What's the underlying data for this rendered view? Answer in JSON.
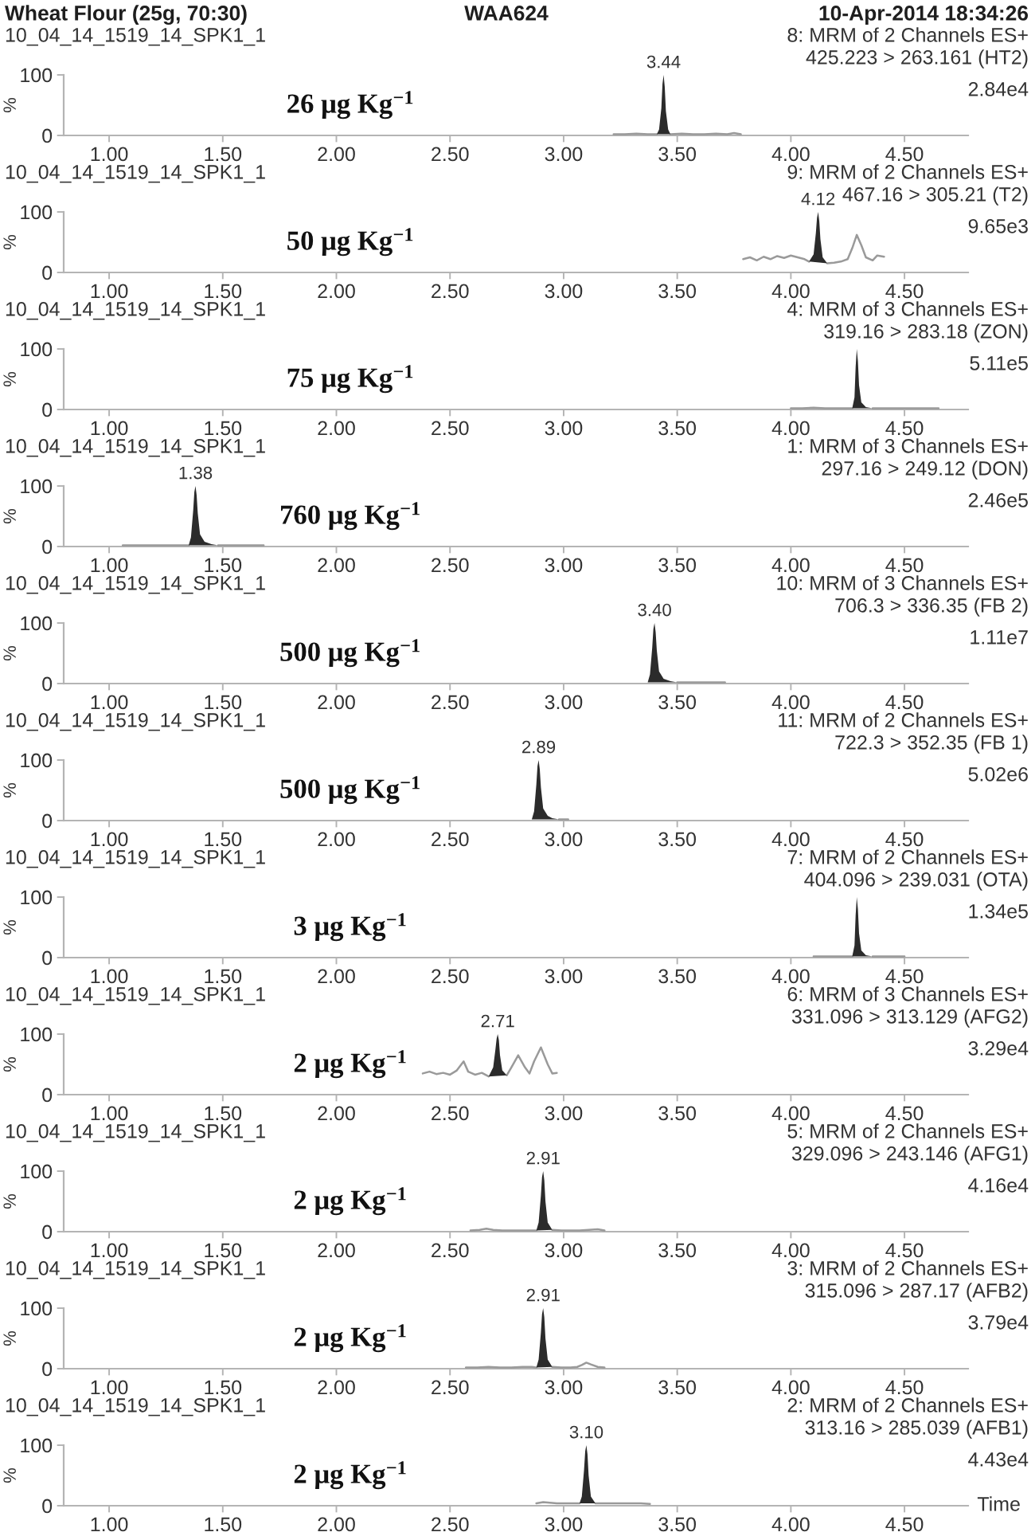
{
  "chart_data": [
    {
      "type": "other",
      "title": "Wheat Flour (25g, 70:30)",
      "annotations": [
        "WAA624",
        "10-Apr-2014 18:34:26"
      ]
    },
    {
      "type": "line",
      "title": "10_04_14_1519_14_SPK1_1",
      "annotations": [
        "8: MRM of 2 Channels ES+",
        "425.223 > 263.161 (HT2)",
        "2.84e4",
        "26 μg Kg$^{−1}$",
        {
          "text": "3.44",
          "x": 3.44,
          "y": 100
        }
      ],
      "xlim": [
        0.8,
        4.78
      ],
      "xticks": [
        {
          "value": 1,
          "label": "1.00"
        },
        {
          "value": 1.5,
          "label": "1.50"
        },
        {
          "value": 2,
          "label": "2.00"
        },
        {
          "value": 2.5,
          "label": "2.50"
        },
        {
          "value": 3,
          "label": "3.00"
        },
        {
          "value": 3.5,
          "label": "3.50"
        },
        {
          "value": 4,
          "label": "4.00"
        },
        {
          "value": 4.5,
          "label": "4.50"
        }
      ],
      "ylim": [
        0,
        100
      ],
      "yticks": [
        0,
        100
      ],
      "ylabel": "%",
      "series": [
        {
          "type": "line",
          "color": "#9a9a9a",
          "x": [
            3.22,
            3.27,
            3.32,
            3.37,
            3.41,
            3.42,
            3.47,
            3.52,
            3.57,
            3.62,
            3.67,
            3.72,
            3.75,
            3.78
          ],
          "values": [
            2,
            2,
            3,
            2,
            2,
            null,
            2,
            3,
            2,
            2,
            3,
            2,
            4,
            2
          ]
        },
        {
          "type": "area",
          "color": "#2b2b2b",
          "x": [
            3.41,
            3.42,
            3.43,
            3.435,
            3.44,
            3.445,
            3.45,
            3.46,
            3.47
          ],
          "values": [
            2,
            10,
            45,
            85,
            100,
            80,
            40,
            10,
            2
          ]
        }
      ]
    },
    {
      "type": "line",
      "title": "10_04_14_1519_14_SPK1_1",
      "annotations": [
        "9: MRM of 2 Channels ES+",
        "467.16 > 305.21 (T2)",
        "9.65e3",
        "50 μg Kg$^{−1}$",
        {
          "text": "4.12",
          "x": 4.12,
          "y": 100
        }
      ],
      "xlim": [
        0.8,
        4.78
      ],
      "xticks": [
        {
          "value": 1,
          "label": "1.00"
        },
        {
          "value": 1.5,
          "label": "1.50"
        },
        {
          "value": 2,
          "label": "2.00"
        },
        {
          "value": 2.5,
          "label": "2.50"
        },
        {
          "value": 3,
          "label": "3.00"
        },
        {
          "value": 3.5,
          "label": "3.50"
        },
        {
          "value": 4,
          "label": "4.00"
        },
        {
          "value": 4.5,
          "label": "4.50"
        }
      ],
      "ylim": [
        0,
        100
      ],
      "yticks": [
        0,
        100
      ],
      "ylabel": "%",
      "series": [
        {
          "type": "line",
          "color": "#9a9a9a",
          "x": [
            3.79,
            3.82,
            3.85,
            3.88,
            3.91,
            3.94,
            3.97,
            4.0,
            4.03,
            4.06,
            4.08,
            4.1,
            4.16,
            4.19,
            4.22,
            4.25,
            4.27,
            4.29,
            4.31,
            4.33,
            4.36,
            4.38,
            4.41
          ],
          "values": [
            22,
            25,
            20,
            26,
            22,
            27,
            24,
            28,
            25,
            22,
            18,
            null,
            15,
            16,
            18,
            22,
            40,
            62,
            45,
            25,
            20,
            28,
            26
          ]
        },
        {
          "type": "area",
          "color": "#2b2b2b",
          "x": [
            4.08,
            4.1,
            4.11,
            4.115,
            4.12,
            4.125,
            4.13,
            4.14,
            4.16
          ],
          "values": [
            18,
            30,
            65,
            90,
            100,
            85,
            55,
            25,
            15
          ]
        }
      ]
    },
    {
      "type": "line",
      "title": "10_04_14_1519_14_SPK1_1",
      "annotations": [
        "4: MRM of 3 Channels ES+",
        "319.16 > 283.18 (ZON)",
        "5.11e5",
        "75 μg Kg$^{−1}$"
      ],
      "xlim": [
        0.8,
        4.78
      ],
      "xticks": [
        {
          "value": 1,
          "label": "1.00"
        },
        {
          "value": 1.5,
          "label": "1.50"
        },
        {
          "value": 2,
          "label": "2.00"
        },
        {
          "value": 2.5,
          "label": "2.50"
        },
        {
          "value": 3,
          "label": "3.00"
        },
        {
          "value": 3.5,
          "label": "3.50"
        },
        {
          "value": 4,
          "label": "4.00"
        },
        {
          "value": 4.5,
          "label": "4.50"
        }
      ],
      "ylim": [
        0,
        100
      ],
      "yticks": [
        0,
        100
      ],
      "ylabel": "%",
      "series": [
        {
          "type": "line",
          "color": "#9a9a9a",
          "x": [
            4.0,
            4.05,
            4.1,
            4.15,
            4.2,
            4.25,
            4.27,
            4.28,
            4.36,
            4.4,
            4.45,
            4.5,
            4.55,
            4.6,
            4.65
          ],
          "values": [
            2,
            2,
            3,
            2,
            2,
            2,
            2,
            null,
            2,
            2,
            2,
            2,
            2,
            2,
            2
          ]
        },
        {
          "type": "area",
          "color": "#2b2b2b",
          "x": [
            4.27,
            4.28,
            4.285,
            4.29,
            4.295,
            4.3,
            4.31,
            4.33,
            4.36
          ],
          "values": [
            2,
            20,
            70,
            100,
            80,
            40,
            12,
            4,
            2
          ]
        }
      ]
    },
    {
      "type": "line",
      "title": "10_04_14_1519_14_SPK1_1",
      "annotations": [
        "1: MRM of 3 Channels ES+",
        "297.16 > 249.12 (DON)",
        "2.46e5",
        "760 μg Kg$^{−1}$",
        {
          "text": "1.38",
          "x": 1.38,
          "y": 100
        }
      ],
      "xlim": [
        0.8,
        4.78
      ],
      "xticks": [
        {
          "value": 1,
          "label": "1.00"
        },
        {
          "value": 1.5,
          "label": "1.50"
        },
        {
          "value": 2,
          "label": "2.00"
        },
        {
          "value": 2.5,
          "label": "2.50"
        },
        {
          "value": 3,
          "label": "3.00"
        },
        {
          "value": 3.5,
          "label": "3.50"
        },
        {
          "value": 4,
          "label": "4.00"
        },
        {
          "value": 4.5,
          "label": "4.50"
        }
      ],
      "ylim": [
        0,
        100
      ],
      "yticks": [
        0,
        100
      ],
      "ylabel": "%",
      "series": [
        {
          "type": "line",
          "color": "#9a9a9a",
          "x": [
            1.06,
            1.1,
            1.15,
            1.2,
            1.25,
            1.3,
            1.35,
            1.36,
            1.48,
            1.52,
            1.56,
            1.6,
            1.64,
            1.68
          ],
          "values": [
            2,
            2,
            2,
            2,
            2,
            2,
            2,
            null,
            2,
            2,
            2,
            2,
            2,
            2
          ]
        },
        {
          "type": "area",
          "color": "#2b2b2b",
          "x": [
            1.35,
            1.36,
            1.37,
            1.375,
            1.38,
            1.385,
            1.39,
            1.4,
            1.42,
            1.45,
            1.48
          ],
          "values": [
            2,
            15,
            60,
            90,
            100,
            85,
            55,
            20,
            8,
            4,
            2
          ]
        }
      ]
    },
    {
      "type": "line",
      "title": "10_04_14_1519_14_SPK1_1",
      "annotations": [
        "10: MRM of 3 Channels ES+",
        "706.3 > 336.35 (FB 2)",
        "1.11e7",
        "500 μg Kg$^{−1}$",
        {
          "text": "3.40",
          "x": 3.4,
          "y": 100
        }
      ],
      "xlim": [
        0.8,
        4.78
      ],
      "xticks": [
        {
          "value": 1,
          "label": "1.00"
        },
        {
          "value": 1.5,
          "label": "1.50"
        },
        {
          "value": 2,
          "label": "2.00"
        },
        {
          "value": 2.5,
          "label": "2.50"
        },
        {
          "value": 3,
          "label": "3.00"
        },
        {
          "value": 3.5,
          "label": "3.50"
        },
        {
          "value": 4,
          "label": "4.00"
        },
        {
          "value": 4.5,
          "label": "4.50"
        }
      ],
      "ylim": [
        0,
        100
      ],
      "yticks": [
        0,
        100
      ],
      "ylabel": "%",
      "series": [
        {
          "type": "line",
          "color": "#9a9a9a",
          "x": [
            3.5,
            3.55,
            3.6,
            3.65,
            3.71
          ],
          "values": [
            2,
            2,
            2,
            2,
            2
          ]
        },
        {
          "type": "area",
          "color": "#2b2b2b",
          "x": [
            3.37,
            3.38,
            3.39,
            3.395,
            3.4,
            3.405,
            3.41,
            3.42,
            3.44,
            3.47,
            3.5
          ],
          "values": [
            2,
            15,
            60,
            90,
            100,
            85,
            55,
            20,
            8,
            4,
            2
          ]
        }
      ]
    },
    {
      "type": "line",
      "title": "10_04_14_1519_14_SPK1_1",
      "annotations": [
        "11: MRM of 2 Channels ES+",
        "722.3 > 352.35 (FB 1)",
        "5.02e6",
        "500 μg Kg$^{−1}$",
        {
          "text": "2.89",
          "x": 2.89,
          "y": 100
        }
      ],
      "xlim": [
        0.8,
        4.78
      ],
      "xticks": [
        {
          "value": 1,
          "label": "1.00"
        },
        {
          "value": 1.5,
          "label": "1.50"
        },
        {
          "value": 2,
          "label": "2.00"
        },
        {
          "value": 2.5,
          "label": "2.50"
        },
        {
          "value": 3,
          "label": "3.00"
        },
        {
          "value": 3.5,
          "label": "3.50"
        },
        {
          "value": 4,
          "label": "4.00"
        },
        {
          "value": 4.5,
          "label": "4.50"
        }
      ],
      "ylim": [
        0,
        100
      ],
      "yticks": [
        0,
        100
      ],
      "ylabel": "%",
      "series": [
        {
          "type": "line",
          "color": "#9a9a9a",
          "x": [
            2.98,
            3.02
          ],
          "values": [
            2,
            2
          ]
        },
        {
          "type": "area",
          "color": "#2b2b2b",
          "x": [
            2.86,
            2.87,
            2.88,
            2.885,
            2.89,
            2.895,
            2.9,
            2.91,
            2.93,
            2.95,
            2.98
          ],
          "values": [
            2,
            15,
            60,
            90,
            100,
            85,
            55,
            20,
            8,
            4,
            2
          ]
        }
      ]
    },
    {
      "type": "line",
      "title": "10_04_14_1519_14_SPK1_1",
      "annotations": [
        "7: MRM of 2 Channels ES+",
        "404.096 > 239.031 (OTA)",
        "1.34e5",
        "3 μg Kg$^{−1}$"
      ],
      "xlim": [
        0.8,
        4.78
      ],
      "xticks": [
        {
          "value": 1,
          "label": "1.00"
        },
        {
          "value": 1.5,
          "label": "1.50"
        },
        {
          "value": 2,
          "label": "2.00"
        },
        {
          "value": 2.5,
          "label": "2.50"
        },
        {
          "value": 3,
          "label": "3.00"
        },
        {
          "value": 3.5,
          "label": "3.50"
        },
        {
          "value": 4,
          "label": "4.00"
        },
        {
          "value": 4.5,
          "label": "4.50"
        }
      ],
      "ylim": [
        0,
        100
      ],
      "yticks": [
        0,
        100
      ],
      "ylabel": "%",
      "series": [
        {
          "type": "line",
          "color": "#9a9a9a",
          "x": [
            4.1,
            4.15,
            4.2,
            4.25,
            4.27,
            4.28,
            4.36,
            4.4,
            4.45,
            4.5
          ],
          "values": [
            2,
            2,
            2,
            2,
            2,
            null,
            2,
            2,
            2,
            2
          ]
        },
        {
          "type": "area",
          "color": "#2b2b2b",
          "x": [
            4.27,
            4.28,
            4.285,
            4.29,
            4.295,
            4.3,
            4.31,
            4.33,
            4.36
          ],
          "values": [
            2,
            20,
            70,
            100,
            80,
            40,
            12,
            4,
            2
          ]
        }
      ]
    },
    {
      "type": "line",
      "title": "10_04_14_1519_14_SPK1_1",
      "annotations": [
        "6: MRM of 3 Channels ES+",
        "331.096 > 313.129 (AFG2)",
        "3.29e4",
        "2 μg Kg$^{−1}$",
        {
          "text": "2.71",
          "x": 2.71,
          "y": 100
        }
      ],
      "xlim": [
        0.8,
        4.78
      ],
      "xticks": [
        {
          "value": 1,
          "label": "1.00"
        },
        {
          "value": 1.5,
          "label": "1.50"
        },
        {
          "value": 2,
          "label": "2.00"
        },
        {
          "value": 2.5,
          "label": "2.50"
        },
        {
          "value": 3,
          "label": "3.00"
        },
        {
          "value": 3.5,
          "label": "3.50"
        },
        {
          "value": 4,
          "label": "4.00"
        },
        {
          "value": 4.5,
          "label": "4.50"
        }
      ],
      "ylim": [
        0,
        100
      ],
      "yticks": [
        0,
        100
      ],
      "ylabel": "%",
      "series": [
        {
          "type": "line",
          "color": "#9a9a9a",
          "x": [
            2.38,
            2.41,
            2.44,
            2.47,
            2.5,
            2.53,
            2.56,
            2.58,
            2.61,
            2.64,
            2.67,
            2.68,
            2.75,
            2.77,
            2.8,
            2.83,
            2.85,
            2.87,
            2.9,
            2.93,
            2.95,
            2.97
          ],
          "values": [
            35,
            38,
            34,
            36,
            33,
            40,
            55,
            38,
            33,
            36,
            30,
            null,
            32,
            45,
            65,
            45,
            35,
            55,
            78,
            50,
            35,
            36
          ]
        },
        {
          "type": "area",
          "color": "#2b2b2b",
          "x": [
            2.67,
            2.69,
            2.7,
            2.705,
            2.71,
            2.715,
            2.72,
            2.73,
            2.75
          ],
          "values": [
            30,
            45,
            75,
            92,
            100,
            90,
            65,
            40,
            32
          ]
        }
      ]
    },
    {
      "type": "line",
      "title": "10_04_14_1519_14_SPK1_1",
      "annotations": [
        "5: MRM of 2 Channels ES+",
        "329.096 > 243.146 (AFG1)",
        "4.16e4",
        "2 μg Kg$^{−1}$",
        {
          "text": "2.91",
          "x": 2.91,
          "y": 100
        }
      ],
      "xlim": [
        0.8,
        4.78
      ],
      "xticks": [
        {
          "value": 1,
          "label": "1.00"
        },
        {
          "value": 1.5,
          "label": "1.50"
        },
        {
          "value": 2,
          "label": "2.00"
        },
        {
          "value": 2.5,
          "label": "2.50"
        },
        {
          "value": 3,
          "label": "3.00"
        },
        {
          "value": 3.5,
          "label": "3.50"
        },
        {
          "value": 4,
          "label": "4.00"
        },
        {
          "value": 4.5,
          "label": "4.50"
        }
      ],
      "ylim": [
        0,
        100
      ],
      "yticks": [
        0,
        100
      ],
      "ylabel": "%",
      "series": [
        {
          "type": "line",
          "color": "#9a9a9a",
          "x": [
            2.59,
            2.63,
            2.66,
            2.69,
            2.73,
            2.77,
            2.81,
            2.85,
            2.88,
            2.89,
            2.95,
            2.99,
            3.03,
            3.07,
            3.11,
            3.15,
            3.18
          ],
          "values": [
            2,
            3,
            5,
            3,
            2,
            2,
            2,
            2,
            2,
            null,
            3,
            2,
            2,
            2,
            3,
            4,
            2
          ]
        },
        {
          "type": "area",
          "color": "#2b2b2b",
          "x": [
            2.88,
            2.89,
            2.9,
            2.905,
            2.91,
            2.915,
            2.92,
            2.93,
            2.95
          ],
          "values": [
            2,
            15,
            60,
            90,
            100,
            85,
            50,
            15,
            3
          ]
        }
      ]
    },
    {
      "type": "line",
      "title": "10_04_14_1519_14_SPK1_1",
      "annotations": [
        "3: MRM of 2 Channels ES+",
        "315.096 > 287.17 (AFB2)",
        "3.79e4",
        "2 μg Kg$^{−1}$",
        {
          "text": "2.91",
          "x": 2.91,
          "y": 100
        }
      ],
      "xlim": [
        0.8,
        4.78
      ],
      "xticks": [
        {
          "value": 1,
          "label": "1.00"
        },
        {
          "value": 1.5,
          "label": "1.50"
        },
        {
          "value": 2,
          "label": "2.00"
        },
        {
          "value": 2.5,
          "label": "2.50"
        },
        {
          "value": 3,
          "label": "3.00"
        },
        {
          "value": 3.5,
          "label": "3.50"
        },
        {
          "value": 4,
          "label": "4.00"
        },
        {
          "value": 4.5,
          "label": "4.50"
        }
      ],
      "ylim": [
        0,
        100
      ],
      "yticks": [
        0,
        100
      ],
      "ylabel": "%",
      "series": [
        {
          "type": "line",
          "color": "#9a9a9a",
          "x": [
            2.57,
            2.62,
            2.67,
            2.72,
            2.77,
            2.82,
            2.86,
            2.88,
            2.89,
            2.95,
            2.99,
            3.03,
            3.06,
            3.08,
            3.1,
            3.12,
            3.15,
            3.18
          ],
          "values": [
            2,
            2,
            3,
            2,
            2,
            3,
            3,
            2,
            null,
            3,
            2,
            2,
            3,
            6,
            10,
            7,
            3,
            2
          ]
        },
        {
          "type": "area",
          "color": "#2b2b2b",
          "x": [
            2.88,
            2.89,
            2.9,
            2.905,
            2.91,
            2.915,
            2.92,
            2.93,
            2.95
          ],
          "values": [
            2,
            15,
            60,
            90,
            100,
            85,
            50,
            15,
            3
          ]
        }
      ]
    },
    {
      "type": "line",
      "title": "10_04_14_1519_14_SPK1_1",
      "annotations": [
        "2: MRM of 2 Channels ES+",
        "313.16 > 285.039 (AFB1)",
        "4.43e4",
        "2 μg Kg$^{−1}$",
        {
          "text": "3.10",
          "x": 3.1,
          "y": 100
        }
      ],
      "xlim": [
        0.8,
        4.78
      ],
      "xticks": [
        {
          "value": 1,
          "label": "1.00"
        },
        {
          "value": 1.5,
          "label": "1.50"
        },
        {
          "value": 2,
          "label": "2.00"
        },
        {
          "value": 2.5,
          "label": "2.50"
        },
        {
          "value": 3,
          "label": "3.00"
        },
        {
          "value": 3.5,
          "label": "3.50"
        },
        {
          "value": 4,
          "label": "4.00"
        },
        {
          "value": 4.5,
          "label": "4.50"
        }
      ],
      "ylim": [
        0,
        100
      ],
      "yticks": [
        0,
        100
      ],
      "ylabel": "%",
      "xlabel": "Time",
      "series": [
        {
          "type": "line",
          "color": "#9a9a9a",
          "x": [
            2.88,
            2.91,
            2.94,
            2.97,
            3.01,
            3.05,
            3.07,
            3.08,
            3.14,
            3.18,
            3.22,
            3.26,
            3.3,
            3.34,
            3.38
          ],
          "values": [
            4,
            6,
            5,
            4,
            4,
            4,
            4,
            null,
            4,
            4,
            4,
            4,
            4,
            4,
            3
          ]
        },
        {
          "type": "area",
          "color": "#2b2b2b",
          "x": [
            3.07,
            3.08,
            3.09,
            3.095,
            3.1,
            3.105,
            3.11,
            3.12,
            3.14
          ],
          "values": [
            4,
            15,
            60,
            90,
            100,
            85,
            50,
            15,
            4
          ]
        }
      ]
    }
  ]
}
